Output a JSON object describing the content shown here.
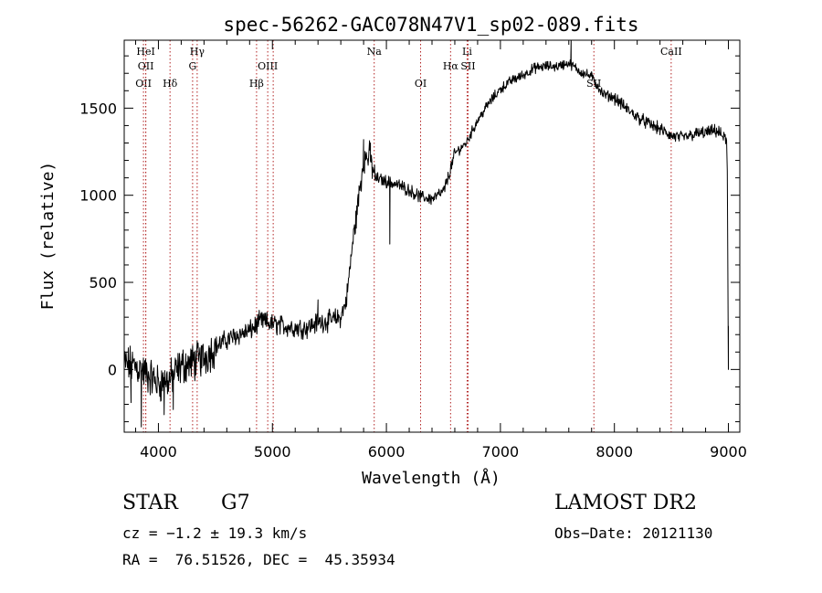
{
  "chart_data": {
    "type": "line",
    "title": "spec-56262-GAC078N47V1_sp02-089.fits",
    "xlabel": "Wavelength (Å)",
    "ylabel": "Flux (relative)",
    "xlim": [
      3700,
      9100
    ],
    "ylim": [
      -360,
      1890
    ],
    "xticks": [
      4000,
      5000,
      6000,
      7000,
      8000,
      9000
    ],
    "yticks": [
      0,
      500,
      1000,
      1500
    ],
    "grid": false,
    "line_color": "#000000",
    "marker_color": "#b22222",
    "spectrum_anchors": [
      {
        "x": 3700,
        "y": 30
      },
      {
        "x": 3800,
        "y": 20
      },
      {
        "x": 3900,
        "y": -30
      },
      {
        "x": 4000,
        "y": -80
      },
      {
        "x": 4100,
        "y": -60
      },
      {
        "x": 4200,
        "y": 20
      },
      {
        "x": 4300,
        "y": 40
      },
      {
        "x": 4400,
        "y": 70
      },
      {
        "x": 4500,
        "y": 130
      },
      {
        "x": 4600,
        "y": 170
      },
      {
        "x": 4700,
        "y": 200
      },
      {
        "x": 4800,
        "y": 220
      },
      {
        "x": 4900,
        "y": 280
      },
      {
        "x": 5000,
        "y": 260
      },
      {
        "x": 5100,
        "y": 250
      },
      {
        "x": 5200,
        "y": 240
      },
      {
        "x": 5300,
        "y": 240
      },
      {
        "x": 5400,
        "y": 270
      },
      {
        "x": 5500,
        "y": 280
      },
      {
        "x": 5600,
        "y": 300
      },
      {
        "x": 5650,
        "y": 400
      },
      {
        "x": 5700,
        "y": 700
      },
      {
        "x": 5750,
        "y": 950
      },
      {
        "x": 5800,
        "y": 1200
      },
      {
        "x": 5850,
        "y": 1230
      },
      {
        "x": 5900,
        "y": 1100
      },
      {
        "x": 6000,
        "y": 1080
      },
      {
        "x": 6100,
        "y": 1060
      },
      {
        "x": 6200,
        "y": 1030
      },
      {
        "x": 6300,
        "y": 990
      },
      {
        "x": 6400,
        "y": 980
      },
      {
        "x": 6500,
        "y": 1020
      },
      {
        "x": 6550,
        "y": 1120
      },
      {
        "x": 6600,
        "y": 1240
      },
      {
        "x": 6700,
        "y": 1300
      },
      {
        "x": 6800,
        "y": 1430
      },
      {
        "x": 6900,
        "y": 1530
      },
      {
        "x": 7000,
        "y": 1610
      },
      {
        "x": 7100,
        "y": 1660
      },
      {
        "x": 7200,
        "y": 1690
      },
      {
        "x": 7300,
        "y": 1730
      },
      {
        "x": 7400,
        "y": 1740
      },
      {
        "x": 7500,
        "y": 1740
      },
      {
        "x": 7600,
        "y": 1760
      },
      {
        "x": 7700,
        "y": 1710
      },
      {
        "x": 7800,
        "y": 1680
      },
      {
        "x": 7900,
        "y": 1580
      },
      {
        "x": 8000,
        "y": 1560
      },
      {
        "x": 8100,
        "y": 1500
      },
      {
        "x": 8200,
        "y": 1450
      },
      {
        "x": 8300,
        "y": 1410
      },
      {
        "x": 8400,
        "y": 1380
      },
      {
        "x": 8500,
        "y": 1340
      },
      {
        "x": 8600,
        "y": 1330
      },
      {
        "x": 8700,
        "y": 1350
      },
      {
        "x": 8800,
        "y": 1360
      },
      {
        "x": 8900,
        "y": 1370
      },
      {
        "x": 8980,
        "y": 1320
      }
    ],
    "spectrum_features": [
      {
        "x": 3760,
        "y": -190
      },
      {
        "x": 3850,
        "y": -330
      },
      {
        "x": 4050,
        "y": -260
      },
      {
        "x": 4130,
        "y": -230
      },
      {
        "x": 5400,
        "y": 400
      },
      {
        "x": 5800,
        "y": 1320
      },
      {
        "x": 5860,
        "y": 1300
      },
      {
        "x": 6030,
        "y": 720
      },
      {
        "x": 7620,
        "y": 1890
      },
      {
        "x": 8990,
        "y": 1140
      },
      {
        "x": 9000,
        "y": 250
      },
      {
        "x": 9000,
        "y": 0
      }
    ],
    "line_markers": [
      {
        "x": 3869,
        "label": "OII",
        "row": 2
      },
      {
        "x": 3889,
        "label": "HeI",
        "row": 0
      },
      {
        "x": 3889,
        "label": "OII",
        "row": 1
      },
      {
        "x": 4102,
        "label": "Hδ",
        "row": 2
      },
      {
        "x": 4300,
        "label": "G",
        "row": 1
      },
      {
        "x": 4340,
        "label": "Hγ",
        "row": 0
      },
      {
        "x": 4861,
        "label": "Hβ",
        "row": 2
      },
      {
        "x": 4959,
        "label": "OIII",
        "row": 1
      },
      {
        "x": 5007,
        "label": "",
        "row": 1
      },
      {
        "x": 5893,
        "label": "Na",
        "row": 0
      },
      {
        "x": 6300,
        "label": "OI",
        "row": 2
      },
      {
        "x": 6563,
        "label": "Hα",
        "row": 1
      },
      {
        "x": 6708,
        "label": "Li",
        "row": 0
      },
      {
        "x": 6716,
        "label": "SII",
        "row": 1
      },
      {
        "x": 7820,
        "label": "SII",
        "row": 2
      },
      {
        "x": 8498,
        "label": "CaII",
        "row": 0
      }
    ]
  },
  "info": {
    "object_class": "STAR",
    "subclass": "G7",
    "survey": "LAMOST DR2",
    "redshift_line": "cz = −1.2 ± 19.3 km/s",
    "obs_date_line": "Obs−Date: 20121130",
    "coords_line": "RA =  76.51526, DEC =  45.35934"
  }
}
